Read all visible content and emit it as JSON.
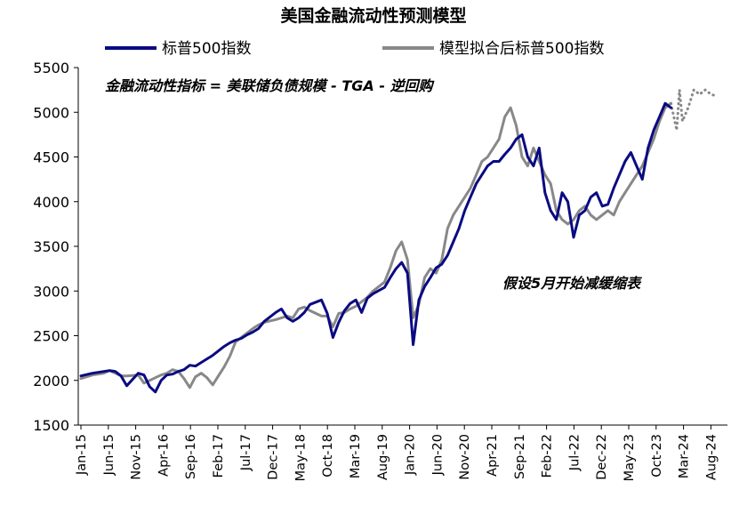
{
  "chart_data": {
    "type": "line",
    "title": "美国金融流动性预测模型",
    "xlabel": "",
    "ylabel": "",
    "ylim": [
      1500,
      5500
    ],
    "y_ticks": [
      1500,
      2000,
      2500,
      3000,
      3500,
      4000,
      4500,
      5000,
      5500
    ],
    "x_tick_labels": [
      "Jan-15",
      "Jun-15",
      "Nov-15",
      "Apr-16",
      "Sep-16",
      "Feb-17",
      "Jul-17",
      "Dec-17",
      "May-18",
      "Oct-18",
      "Mar-19",
      "Aug-19",
      "Jan-20",
      "Jun-20",
      "Nov-20",
      "Apr-21",
      "Sep-21",
      "Feb-22",
      "Jul-22",
      "Dec-22",
      "May-23",
      "Oct-23",
      "Mar-24",
      "Aug-24"
    ],
    "grid": false,
    "legend_position": "top",
    "annotations": {
      "formula": "金融流动性指标 = 美联储负债规模 - TGA - 逆回购",
      "assumption": "假设5月开始减缓缩表"
    },
    "series": [
      {
        "name": "标普500指数",
        "color": "#0a0a82",
        "style": "solid",
        "points": [
          [
            0,
            2050
          ],
          [
            2,
            2080
          ],
          [
            4,
            2100
          ],
          [
            5,
            2110
          ],
          [
            6,
            2100
          ],
          [
            7,
            2050
          ],
          [
            8,
            1940
          ],
          [
            10,
            2080
          ],
          [
            11,
            2060
          ],
          [
            12,
            1930
          ],
          [
            13,
            1870
          ],
          [
            14,
            2000
          ],
          [
            15,
            2060
          ],
          [
            16,
            2070
          ],
          [
            17,
            2100
          ],
          [
            18,
            2120
          ],
          [
            19,
            2170
          ],
          [
            20,
            2160
          ],
          [
            21,
            2200
          ],
          [
            22,
            2240
          ],
          [
            23,
            2280
          ],
          [
            24,
            2330
          ],
          [
            25,
            2380
          ],
          [
            26,
            2420
          ],
          [
            27,
            2450
          ],
          [
            28,
            2470
          ],
          [
            29,
            2510
          ],
          [
            30,
            2540
          ],
          [
            31,
            2580
          ],
          [
            32,
            2660
          ],
          [
            34,
            2760
          ],
          [
            35,
            2800
          ],
          [
            36,
            2700
          ],
          [
            37,
            2660
          ],
          [
            38,
            2700
          ],
          [
            39,
            2760
          ],
          [
            40,
            2850
          ],
          [
            42,
            2900
          ],
          [
            43,
            2750
          ],
          [
            44,
            2480
          ],
          [
            45,
            2650
          ],
          [
            46,
            2780
          ],
          [
            47,
            2860
          ],
          [
            48,
            2900
          ],
          [
            49,
            2760
          ],
          [
            50,
            2920
          ],
          [
            51,
            2970
          ],
          [
            53,
            3040
          ],
          [
            54,
            3150
          ],
          [
            55,
            3250
          ],
          [
            56,
            3320
          ],
          [
            57,
            3200
          ],
          [
            58,
            2400
          ],
          [
            59,
            2900
          ],
          [
            60,
            3050
          ],
          [
            61,
            3150
          ],
          [
            62,
            3260
          ],
          [
            63,
            3300
          ],
          [
            64,
            3400
          ],
          [
            65,
            3550
          ],
          [
            66,
            3700
          ],
          [
            67,
            3900
          ],
          [
            68,
            4050
          ],
          [
            69,
            4200
          ],
          [
            70,
            4300
          ],
          [
            71,
            4400
          ],
          [
            72,
            4450
          ],
          [
            73,
            4450
          ],
          [
            74,
            4530
          ],
          [
            75,
            4600
          ],
          [
            76,
            4700
          ],
          [
            77,
            4750
          ],
          [
            78,
            4500
          ],
          [
            79,
            4400
          ],
          [
            80,
            4600
          ],
          [
            81,
            4100
          ],
          [
            82,
            3900
          ],
          [
            83,
            3800
          ],
          [
            84,
            4100
          ],
          [
            85,
            4000
          ],
          [
            86,
            3600
          ],
          [
            87,
            3850
          ],
          [
            88,
            3900
          ],
          [
            89,
            4050
          ],
          [
            90,
            4100
          ],
          [
            91,
            3950
          ],
          [
            92,
            3970
          ],
          [
            93,
            4150
          ],
          [
            94,
            4300
          ],
          [
            95,
            4450
          ],
          [
            96,
            4550
          ],
          [
            97,
            4400
          ],
          [
            98,
            4250
          ],
          [
            99,
            4600
          ],
          [
            100,
            4800
          ],
          [
            101,
            4950
          ],
          [
            102,
            5100
          ],
          [
            103,
            5050
          ]
        ]
      },
      {
        "name": "模型拟合后标普500指数",
        "color": "#888888",
        "style": "solid",
        "points": [
          [
            0,
            2020
          ],
          [
            2,
            2060
          ],
          [
            4,
            2080
          ],
          [
            5,
            2110
          ],
          [
            6,
            2080
          ],
          [
            7,
            2050
          ],
          [
            8,
            2050
          ],
          [
            10,
            2060
          ],
          [
            11,
            1970
          ],
          [
            12,
            2000
          ],
          [
            13,
            2030
          ],
          [
            14,
            2060
          ],
          [
            15,
            2080
          ],
          [
            16,
            2120
          ],
          [
            17,
            2100
          ],
          [
            18,
            2020
          ],
          [
            19,
            1920
          ],
          [
            20,
            2040
          ],
          [
            21,
            2080
          ],
          [
            22,
            2030
          ],
          [
            23,
            1950
          ],
          [
            24,
            2050
          ],
          [
            25,
            2150
          ],
          [
            26,
            2270
          ],
          [
            27,
            2430
          ],
          [
            28,
            2480
          ],
          [
            29,
            2530
          ],
          [
            30,
            2580
          ],
          [
            31,
            2620
          ],
          [
            32,
            2650
          ],
          [
            34,
            2680
          ],
          [
            35,
            2700
          ],
          [
            36,
            2720
          ],
          [
            37,
            2700
          ],
          [
            38,
            2800
          ],
          [
            39,
            2820
          ],
          [
            40,
            2780
          ],
          [
            42,
            2720
          ],
          [
            43,
            2720
          ],
          [
            44,
            2600
          ],
          [
            45,
            2750
          ],
          [
            46,
            2760
          ],
          [
            47,
            2800
          ],
          [
            48,
            2830
          ],
          [
            49,
            2880
          ],
          [
            50,
            2930
          ],
          [
            51,
            3000
          ],
          [
            53,
            3100
          ],
          [
            54,
            3260
          ],
          [
            55,
            3450
          ],
          [
            56,
            3550
          ],
          [
            57,
            3350
          ],
          [
            58,
            2700
          ],
          [
            59,
            2850
          ],
          [
            60,
            3150
          ],
          [
            61,
            3250
          ],
          [
            62,
            3200
          ],
          [
            63,
            3350
          ],
          [
            64,
            3700
          ],
          [
            65,
            3850
          ],
          [
            66,
            3950
          ],
          [
            67,
            4050
          ],
          [
            68,
            4150
          ],
          [
            69,
            4300
          ],
          [
            70,
            4450
          ],
          [
            71,
            4500
          ],
          [
            72,
            4600
          ],
          [
            73,
            4700
          ],
          [
            74,
            4950
          ],
          [
            75,
            5050
          ],
          [
            76,
            4850
          ],
          [
            77,
            4500
          ],
          [
            78,
            4400
          ],
          [
            79,
            4600
          ],
          [
            80,
            4450
          ],
          [
            81,
            4300
          ],
          [
            82,
            4200
          ],
          [
            83,
            3900
          ],
          [
            84,
            3800
          ],
          [
            85,
            3750
          ],
          [
            86,
            3800
          ],
          [
            87,
            3900
          ],
          [
            88,
            3950
          ],
          [
            89,
            3850
          ],
          [
            90,
            3800
          ],
          [
            91,
            3850
          ],
          [
            92,
            3900
          ],
          [
            93,
            3850
          ],
          [
            94,
            4000
          ],
          [
            95,
            4100
          ],
          [
            96,
            4200
          ],
          [
            97,
            4300
          ],
          [
            98,
            4400
          ],
          [
            99,
            4550
          ],
          [
            100,
            4700
          ],
          [
            101,
            4900
          ],
          [
            102,
            5050
          ],
          [
            103,
            5100
          ]
        ]
      },
      {
        "name": "",
        "color": "#888888",
        "style": "dotted",
        "points": [
          [
            103,
            5100
          ],
          [
            104,
            4800
          ],
          [
            104.5,
            5250
          ],
          [
            105,
            4900
          ],
          [
            106,
            5050
          ],
          [
            107,
            5250
          ],
          [
            108,
            5200
          ],
          [
            109,
            5250
          ],
          [
            110,
            5200
          ],
          [
            111,
            5180
          ]
        ]
      }
    ],
    "x_index_start": 0,
    "x_index_end": 111
  }
}
